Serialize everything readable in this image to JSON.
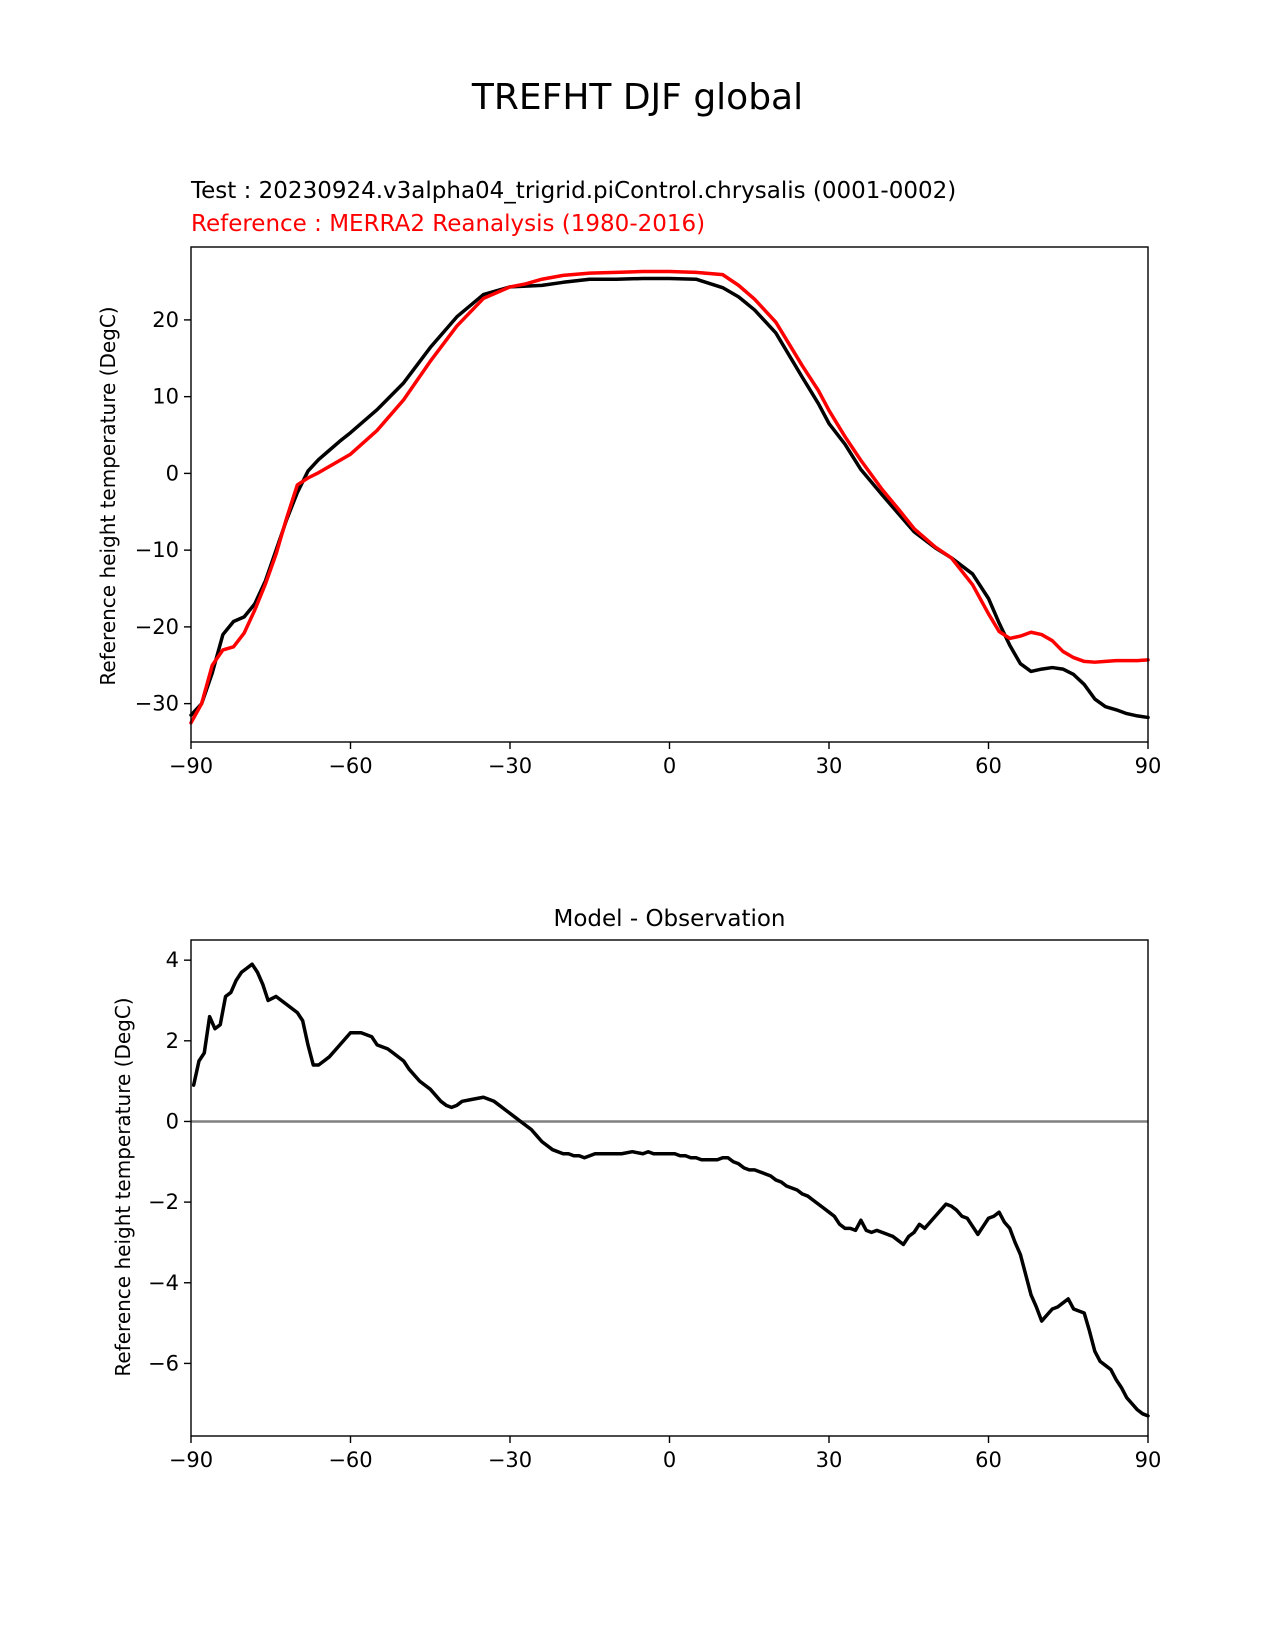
{
  "figure": {
    "suptitle": "TREFHT DJF global"
  },
  "chart_data": [
    {
      "type": "line",
      "test_label": "Test : 20230924.v3alpha04_trigrid.piControl.chrysalis (0001-0002)",
      "reference_label": "Reference : MERRA2 Reanalysis (1980-2016)",
      "xlabel": "",
      "ylabel": "Reference height temperature (DegC)",
      "xlim": [
        -90,
        90
      ],
      "ylim": [
        -35,
        29.5
      ],
      "xticks": [
        -90,
        -60,
        -30,
        0,
        30,
        60,
        90
      ],
      "xtick_labels": [
        "−90",
        "−60",
        "−30",
        "0",
        "30",
        "60",
        "90"
      ],
      "yticks": [
        -30,
        -20,
        -10,
        0,
        10,
        20
      ],
      "ytick_labels": [
        "−30",
        "−20",
        "−10",
        "0",
        "10",
        "20"
      ],
      "grid": false,
      "series": [
        {
          "role": "test",
          "color": "#000000",
          "x": [
            -90,
            -88,
            -86,
            -84,
            -82,
            -80,
            -78,
            -76,
            -74,
            -72,
            -70,
            -68,
            -66,
            -64,
            -62,
            -60,
            -55,
            -50,
            -45,
            -40,
            -35,
            -30,
            -27,
            -24,
            -20,
            -15,
            -10,
            -5,
            0,
            5,
            10,
            13,
            16,
            20,
            25,
            28,
            30,
            33,
            36,
            40,
            43,
            46,
            50,
            53,
            57,
            60,
            62,
            64,
            66,
            68,
            70,
            72,
            74,
            76,
            78,
            80,
            82,
            84,
            86,
            88,
            90
          ],
          "y": [
            -31.5,
            -30,
            -26,
            -21,
            -19.3,
            -18.7,
            -17,
            -14,
            -10,
            -6,
            -2.5,
            0.3,
            1.8,
            3,
            4.2,
            5.3,
            8.3,
            11.8,
            16.4,
            20.4,
            23.3,
            24.3,
            24.4,
            24.5,
            24.9,
            25.3,
            25.3,
            25.4,
            25.4,
            25.3,
            24.2,
            23,
            21.3,
            18.3,
            12.5,
            9.1,
            6.5,
            3.8,
            0.5,
            -2.8,
            -5.2,
            -7.6,
            -9.7,
            -11,
            -13.1,
            -16.3,
            -19.5,
            -22.4,
            -24.8,
            -25.8,
            -25.5,
            -25.3,
            -25.5,
            -26.2,
            -27.5,
            -29.4,
            -30.4,
            -30.8,
            -31.3,
            -31.6,
            -31.8
          ]
        },
        {
          "role": "reference",
          "color": "#ff0000",
          "x": [
            -90,
            -88,
            -86,
            -84,
            -82,
            -80,
            -78,
            -76,
            -74,
            -72,
            -70,
            -68,
            -66,
            -64,
            -62,
            -60,
            -55,
            -50,
            -45,
            -40,
            -35,
            -30,
            -27,
            -24,
            -20,
            -15,
            -10,
            -5,
            0,
            5,
            10,
            13,
            16,
            20,
            25,
            28,
            30,
            33,
            36,
            40,
            43,
            46,
            50,
            53,
            57,
            60,
            62,
            64,
            66,
            68,
            70,
            72,
            74,
            76,
            78,
            80,
            82,
            84,
            86,
            88,
            90
          ],
          "y": [
            -32.5,
            -30,
            -25,
            -23,
            -22.6,
            -20.8,
            -17.8,
            -14.4,
            -10.5,
            -5.8,
            -1.5,
            -0.6,
            0.1,
            0.9,
            1.7,
            2.5,
            5.6,
            9.6,
            14.6,
            19.2,
            22.8,
            24.3,
            24.7,
            25.3,
            25.8,
            26.1,
            26.2,
            26.3,
            26.3,
            26.2,
            25.9,
            24.5,
            22.7,
            19.7,
            14,
            10.8,
            8.2,
            4.8,
            1.7,
            -2.1,
            -4.6,
            -7.2,
            -9.6,
            -11,
            -14.5,
            -18.3,
            -20.6,
            -21.5,
            -21.2,
            -20.7,
            -21,
            -21.8,
            -23.2,
            -24,
            -24.5,
            -24.6,
            -24.5,
            -24.4,
            -24.4,
            -24.4,
            -24.3
          ]
        }
      ]
    },
    {
      "type": "line",
      "title": "Model - Observation",
      "xlabel": "",
      "ylabel": "Reference height temperature (DegC)",
      "xlim": [
        -90,
        90
      ],
      "ylim": [
        -7.8,
        4.5
      ],
      "xticks": [
        -90,
        -60,
        -30,
        0,
        30,
        60,
        90
      ],
      "xtick_labels": [
        "−90",
        "−60",
        "−30",
        "0",
        "30",
        "60",
        "90"
      ],
      "yticks": [
        -6,
        -4,
        -2,
        0,
        2,
        4
      ],
      "ytick_labels": [
        "−6",
        "−4",
        "−2",
        "0",
        "2",
        "4"
      ],
      "grid": false,
      "zero_line": {
        "y": 0,
        "color": "#808080"
      },
      "series": [
        {
          "role": "difference",
          "color": "#000000",
          "x": [
            -89.5,
            -88.5,
            -87.5,
            -86.5,
            -85.5,
            -84.5,
            -83.5,
            -82.5,
            -81.5,
            -80.5,
            -79.5,
            -78.5,
            -77.5,
            -76.5,
            -75.5,
            -74,
            -72,
            -70,
            -69,
            -68,
            -67,
            -66,
            -65,
            -64,
            -62,
            -60,
            -58,
            -56,
            -55,
            -53,
            -52,
            -50,
            -49,
            -47,
            -45,
            -43,
            -42,
            -41,
            -40,
            -39,
            -37,
            -35,
            -33,
            -32,
            -31,
            -30,
            -29,
            -28,
            -27,
            -26,
            -25,
            -24,
            -22,
            -20,
            -19,
            -18,
            -17,
            -16,
            -15,
            -14,
            -13,
            -11,
            -9,
            -7,
            -5,
            -4,
            -3,
            -2,
            -1,
            0,
            1,
            2,
            3,
            4,
            5,
            6,
            7,
            8,
            9,
            10,
            11,
            12,
            13,
            14,
            15,
            16,
            17,
            18,
            19,
            20,
            21,
            22,
            23,
            24,
            25,
            26,
            27,
            28,
            29,
            30,
            31,
            32,
            33,
            34,
            35,
            36,
            37,
            38,
            39,
            40,
            41,
            42,
            43,
            44,
            45,
            46,
            47,
            48,
            49,
            50,
            51,
            52,
            53,
            54,
            55,
            56,
            57,
            58,
            59,
            60,
            61,
            62,
            63,
            64,
            65,
            66,
            67,
            68,
            69,
            70,
            71,
            72,
            73,
            74,
            75,
            76,
            77,
            78,
            79,
            80,
            81,
            82,
            83,
            84,
            85,
            86,
            87,
            88,
            89,
            90
          ],
          "y": [
            0.9,
            1.5,
            1.7,
            2.6,
            2.3,
            2.4,
            3.1,
            3.2,
            3.5,
            3.7,
            3.8,
            3.9,
            3.7,
            3.4,
            3.0,
            3.1,
            2.9,
            2.7,
            2.5,
            1.9,
            1.4,
            1.4,
            1.5,
            1.6,
            1.9,
            2.2,
            2.2,
            2.1,
            1.9,
            1.8,
            1.7,
            1.5,
            1.3,
            1.0,
            0.8,
            0.5,
            0.4,
            0.35,
            0.4,
            0.5,
            0.55,
            0.6,
            0.5,
            0.4,
            0.3,
            0.2,
            0.1,
            0.0,
            -0.1,
            -0.2,
            -0.35,
            -0.5,
            -0.7,
            -0.8,
            -0.8,
            -0.85,
            -0.85,
            -0.9,
            -0.85,
            -0.8,
            -0.8,
            -0.8,
            -0.8,
            -0.75,
            -0.8,
            -0.75,
            -0.8,
            -0.8,
            -0.8,
            -0.8,
            -0.8,
            -0.85,
            -0.85,
            -0.9,
            -0.9,
            -0.95,
            -0.95,
            -0.95,
            -0.95,
            -0.9,
            -0.9,
            -1.0,
            -1.05,
            -1.15,
            -1.2,
            -1.2,
            -1.25,
            -1.3,
            -1.35,
            -1.45,
            -1.5,
            -1.6,
            -1.65,
            -1.7,
            -1.8,
            -1.85,
            -1.95,
            -2.05,
            -2.15,
            -2.25,
            -2.35,
            -2.55,
            -2.65,
            -2.65,
            -2.7,
            -2.45,
            -2.7,
            -2.75,
            -2.7,
            -2.75,
            -2.8,
            -2.85,
            -2.95,
            -3.05,
            -2.85,
            -2.75,
            -2.55,
            -2.65,
            -2.5,
            -2.35,
            -2.2,
            -2.05,
            -2.1,
            -2.2,
            -2.35,
            -2.4,
            -2.6,
            -2.8,
            -2.6,
            -2.4,
            -2.35,
            -2.25,
            -2.5,
            -2.65,
            -3.0,
            -3.3,
            -3.8,
            -4.3,
            -4.6,
            -4.95,
            -4.8,
            -4.65,
            -4.6,
            -4.5,
            -4.4,
            -4.65,
            -4.7,
            -4.75,
            -5.2,
            -5.7,
            -5.95,
            -6.05,
            -6.15,
            -6.4,
            -6.6,
            -6.85,
            -7.0,
            -7.15,
            -7.25,
            -7.3
          ]
        }
      ]
    }
  ]
}
